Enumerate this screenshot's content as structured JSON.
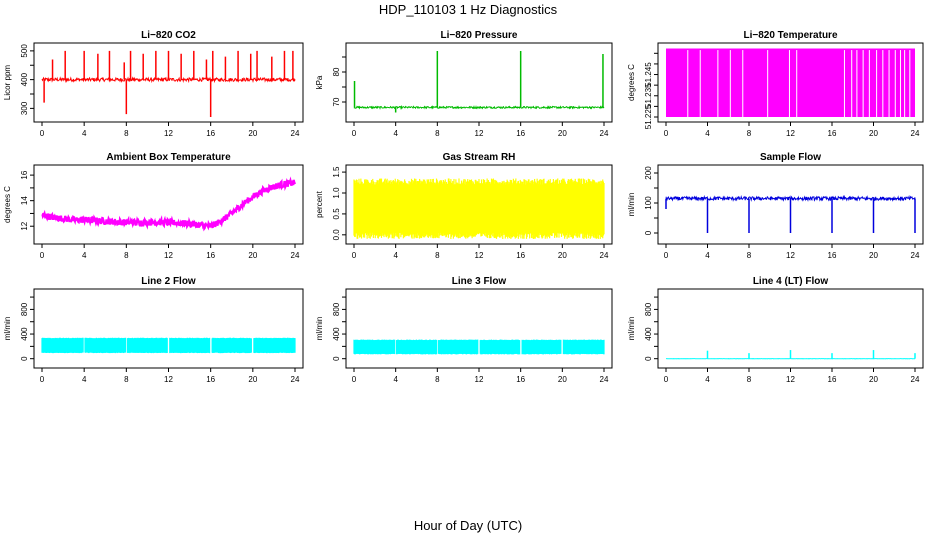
{
  "title": "HDP_110103  1 Hz Diagnostics",
  "xlabel": "Hour of Day (UTC)",
  "chart_data": [
    {
      "type": "line",
      "title": "Li−820 CO2",
      "ylabel": "Licor ppm",
      "color": "#ff0000",
      "xlim": [
        0,
        24
      ],
      "xticks": [
        0,
        4,
        8,
        12,
        16,
        20,
        24
      ],
      "ylim": [
        270,
        510
      ],
      "yticks": [
        300,
        350,
        400,
        450,
        500
      ],
      "yticklabels": [
        "300",
        "",
        "400",
        "",
        "500"
      ],
      "baseline": 400,
      "noise": 6,
      "spikes": [
        [
          0.2,
          320
        ],
        [
          1.0,
          470
        ],
        [
          2.2,
          500
        ],
        [
          4.0,
          500
        ],
        [
          5.3,
          490
        ],
        [
          6.4,
          500
        ],
        [
          7.8,
          460
        ],
        [
          8.0,
          280
        ],
        [
          8.4,
          500
        ],
        [
          9.6,
          490
        ],
        [
          10.8,
          500
        ],
        [
          12.0,
          500
        ],
        [
          13.2,
          490
        ],
        [
          14.4,
          500
        ],
        [
          15.6,
          470
        ],
        [
          16.0,
          270
        ],
        [
          16.2,
          500
        ],
        [
          17.4,
          480
        ],
        [
          18.6,
          500
        ],
        [
          19.8,
          490
        ],
        [
          20.4,
          500
        ],
        [
          21.8,
          480
        ],
        [
          23.0,
          500
        ],
        [
          23.8,
          500
        ]
      ]
    },
    {
      "type": "line",
      "title": "Li−820 Pressure",
      "ylabel": "kPa",
      "color": "#00bb00",
      "xlim": [
        0,
        24
      ],
      "xticks": [
        0,
        4,
        8,
        12,
        16,
        20,
        24
      ],
      "ylim": [
        65,
        88
      ],
      "yticks": [
        70,
        75,
        80,
        85
      ],
      "yticklabels": [
        "70",
        "",
        "80",
        ""
      ],
      "baseline": 68.2,
      "noise": 0.3,
      "spikes": [
        [
          0.05,
          77
        ],
        [
          4.0,
          66.5
        ],
        [
          8.0,
          87
        ],
        [
          16.0,
          87
        ],
        [
          23.9,
          86
        ]
      ]
    },
    {
      "type": "bars",
      "title": "Li−820 Temperature",
      "ylabel": "degrees C",
      "color": "#ff00ff",
      "xlim": [
        0,
        24
      ],
      "xticks": [
        0,
        4,
        8,
        12,
        16,
        20,
        24
      ],
      "ylim": [
        51.225,
        51.2575
      ],
      "yticks": [
        51.225,
        51.23,
        51.235,
        51.24,
        51.245,
        51.25,
        51.255
      ],
      "yticklabels": [
        "51.225",
        "",
        "51.235",
        "",
        "51.245",
        "",
        ""
      ],
      "top": 51.257,
      "bottom": 51.225,
      "gaps": [
        2.1,
        3.3,
        5.0,
        6.2,
        7.4,
        9.8,
        11.9,
        12.6,
        17.2,
        17.9,
        18.4,
        19.0,
        19.6,
        20.3,
        20.9,
        21.5,
        22.1,
        22.6,
        23.0,
        23.5
      ]
    },
    {
      "type": "line",
      "title": "Ambient Box Temperature",
      "ylabel": "degrees C",
      "color": "#ff00ff",
      "xlim": [
        0,
        24
      ],
      "xticks": [
        0,
        4,
        8,
        12,
        16,
        20,
        24
      ],
      "ylim": [
        11.0,
        16.4
      ],
      "yticks": [
        12,
        13,
        14,
        15,
        16
      ],
      "yticklabels": [
        "12",
        "",
        "14",
        "",
        "16"
      ],
      "x": [
        0,
        1,
        2,
        3,
        4,
        6,
        8,
        10,
        12,
        14,
        15,
        16,
        17,
        18,
        19,
        20,
        21,
        22,
        23,
        24
      ],
      "values": [
        12.9,
        12.7,
        12.6,
        12.5,
        12.5,
        12.4,
        12.3,
        12.3,
        12.3,
        12.2,
        12.1,
        12.0,
        12.4,
        13.0,
        13.7,
        14.3,
        14.8,
        15.1,
        15.3,
        15.4
      ],
      "noise": 0.25
    },
    {
      "type": "band",
      "title": "Gas Stream RH",
      "ylabel": "percent",
      "color": "#ffff00",
      "xlim": [
        0,
        24
      ],
      "xticks": [
        0,
        4,
        8,
        12,
        16,
        20,
        24
      ],
      "ylim": [
        -0.1,
        1.55
      ],
      "yticks": [
        0.0,
        0.5,
        1.0,
        1.5
      ],
      "yticklabels": [
        "0.0",
        "0.5",
        "1.0",
        "1.5"
      ],
      "low": 0.05,
      "high": 1.2,
      "jitter": 0.15
    },
    {
      "type": "line",
      "title": "Sample Flow",
      "ylabel": "ml/min",
      "color": "#0000dd",
      "xlim": [
        0,
        24
      ],
      "xticks": [
        0,
        4,
        8,
        12,
        16,
        20,
        24
      ],
      "ylim": [
        -20,
        210
      ],
      "yticks": [
        0,
        50,
        100,
        150,
        200
      ],
      "yticklabels": [
        "0",
        "",
        "100",
        "",
        "200"
      ],
      "baseline": 115,
      "noise": 6,
      "spikes": [
        [
          0.0,
          80
        ],
        [
          4.0,
          0
        ],
        [
          8.0,
          0
        ],
        [
          12.0,
          0
        ],
        [
          16.0,
          0
        ],
        [
          20.0,
          0
        ],
        [
          24.0,
          0
        ]
      ]
    },
    {
      "type": "band",
      "title": "Line 2 Flow",
      "ylabel": "ml/min",
      "color": "#00ffff",
      "xlim": [
        0,
        24
      ],
      "xticks": [
        0,
        4,
        8,
        12,
        16,
        20,
        24
      ],
      "ylim": [
        -70,
        1050
      ],
      "yticks": [
        0,
        200,
        400,
        600,
        800,
        1000
      ],
      "yticklabels": [
        "0",
        "",
        "400",
        "",
        "800",
        ""
      ],
      "low": 100,
      "high": 330,
      "jitter": 10,
      "breaks": [
        4,
        8,
        12,
        16,
        20
      ]
    },
    {
      "type": "band",
      "title": "Line 3 Flow",
      "ylabel": "ml/min",
      "color": "#00ffff",
      "xlim": [
        0,
        24
      ],
      "xticks": [
        0,
        4,
        8,
        12,
        16,
        20,
        24
      ],
      "ylim": [
        -70,
        1050
      ],
      "yticks": [
        0,
        200,
        400,
        600,
        800,
        1000
      ],
      "yticklabels": [
        "0",
        "",
        "400",
        "",
        "800",
        ""
      ],
      "low": 80,
      "high": 300,
      "jitter": 10,
      "breaks": [
        4,
        8,
        12,
        16,
        20
      ]
    },
    {
      "type": "line",
      "title": "Line 4 (LT) Flow",
      "ylabel": "ml/min",
      "color": "#00ffff",
      "xlim": [
        0,
        24
      ],
      "xticks": [
        0,
        4,
        8,
        12,
        16,
        20,
        24
      ],
      "ylim": [
        -70,
        1050
      ],
      "yticks": [
        0,
        200,
        400,
        600,
        800,
        1000
      ],
      "yticklabels": [
        "0",
        "",
        "400",
        "",
        "800",
        ""
      ],
      "baseline": 0,
      "noise": 2,
      "spikes": [
        [
          4.0,
          130
        ],
        [
          8.0,
          90
        ],
        [
          12.0,
          140
        ],
        [
          16.0,
          90
        ],
        [
          20.0,
          140
        ],
        [
          24.0,
          90
        ]
      ]
    }
  ]
}
